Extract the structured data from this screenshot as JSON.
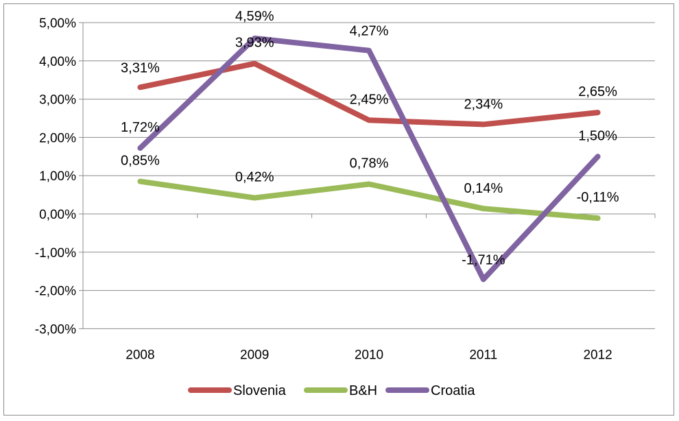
{
  "chart_data": {
    "type": "line",
    "categories": [
      "2008",
      "2009",
      "2010",
      "2011",
      "2012"
    ],
    "ylim": [
      -3,
      5
    ],
    "yticks": [
      5,
      4,
      3,
      2,
      1,
      0,
      -1,
      -2,
      -3
    ],
    "ytick_labels": [
      "5,00%",
      "4,00%",
      "3,00%",
      "2,00%",
      "1,00%",
      "0,00%",
      "-1,00%",
      "-2,00%",
      "-3,00%"
    ],
    "grid": true,
    "legend_position": "bottom",
    "series": [
      {
        "name": "Slovenia",
        "color": "#c0504d",
        "values": [
          3.31,
          3.93,
          2.45,
          2.34,
          2.65
        ],
        "labels": [
          "3,31%",
          "3,93%",
          "2,45%",
          "2,34%",
          "2,65%"
        ]
      },
      {
        "name": "B&H",
        "color": "#9bbb59",
        "values": [
          0.85,
          0.42,
          0.78,
          0.14,
          -0.11
        ],
        "labels": [
          "0,85%",
          "0,42%",
          "0,78%",
          "0,14%",
          "-0,11%"
        ]
      },
      {
        "name": "Croatia",
        "color": "#8064a2",
        "values": [
          1.72,
          4.59,
          4.27,
          -1.71,
          1.5
        ],
        "labels": [
          "1,72%",
          "4,59%",
          "4,27%",
          "-1,71%",
          "1,50%"
        ]
      }
    ]
  }
}
